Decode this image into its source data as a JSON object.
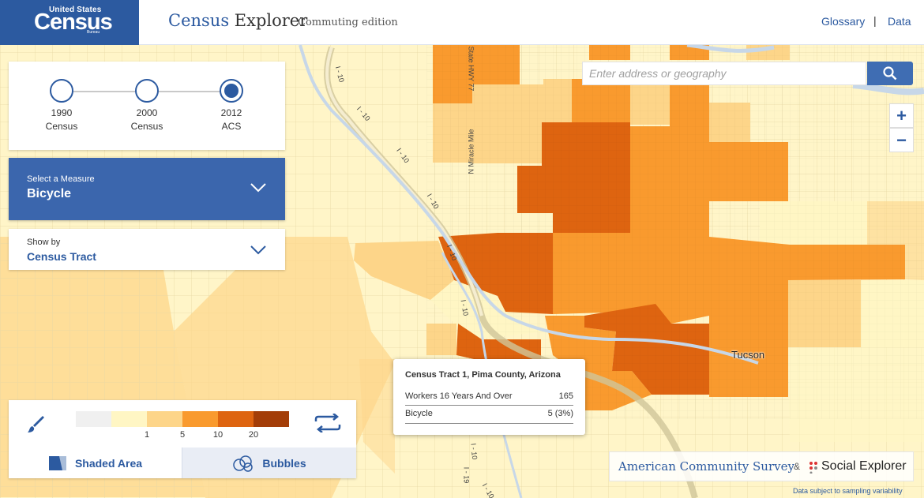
{
  "header": {
    "logo_line1": "United States",
    "logo_line2": "Census",
    "logo_line3": "Bureau",
    "title_part1": "Census",
    "title_part2": " Explorer",
    "subtitle": "Commuting edition",
    "nav_glossary": "Glossary",
    "nav_separator": "|",
    "nav_data": "Data"
  },
  "search": {
    "placeholder": "Enter address or geography"
  },
  "zoom": {
    "in": "+",
    "out": "−"
  },
  "timeline": [
    {
      "year": "1990",
      "label": "Census",
      "active": false
    },
    {
      "year": "2000",
      "label": "Census",
      "active": false
    },
    {
      "year": "2012",
      "label": "ACS",
      "active": true
    }
  ],
  "measure": {
    "caption": "Select a Measure",
    "value": "Bicycle"
  },
  "show_by": {
    "caption": "Show by",
    "value": "Census Tract"
  },
  "legend": {
    "colors": [
      "#f0f0f0",
      "#fff6c4",
      "#fdd589",
      "#f99a2e",
      "#de6410",
      "#a33d08"
    ],
    "ticks": [
      "1",
      "5",
      "10",
      "20"
    ],
    "tab_shaded": "Shaded Area",
    "tab_bubbles": "Bubbles"
  },
  "tooltip": {
    "title": "Census Tract 1, Pima County, Arizona",
    "rows": [
      {
        "label": "Workers 16 Years And Over",
        "value": "165"
      },
      {
        "label": "Bicycle",
        "value": "5 (3%)"
      }
    ]
  },
  "map_labels": {
    "city": "Tucson",
    "i10_a": "I - 10",
    "i10_b": "I - 10",
    "i10_c": "I - 10",
    "i10_d": "I - 10",
    "i10_e": "I - 10",
    "i10_f": "I - 10",
    "i10_g": "I - 10",
    "i19": "I - 19",
    "i10_h": "I - 10",
    "miracle": "N Miracle Mile",
    "hwy77": "State HWY 77"
  },
  "footer": {
    "acs": "American Community Survey",
    "amp": "&",
    "se": "Social Explorer",
    "disclaimer": "Data subject to sampling variability"
  }
}
